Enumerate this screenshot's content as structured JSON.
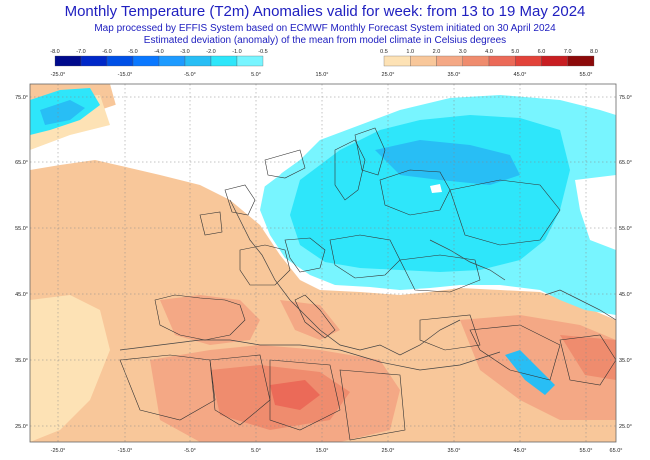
{
  "title": "Monthly Temperature (T2m) Anomalies valid for week: from 13 to 19 May 2024",
  "subtitle_1": "Map processed by EFFIS System based on ECMWF Monthly Forecast System initiated on 30 April 2024",
  "subtitle_2": "Estimated deviation (anomaly) of the mean from model climate in Celsius degrees",
  "legend_negative": {
    "labels": [
      "-8.0",
      "-7.0",
      "-6.0",
      "-5.0",
      "-4.0",
      "-3.0",
      "-2.0",
      "-1.0",
      "-0.5"
    ],
    "colors": [
      "#000a8c",
      "#0028c8",
      "#0050e6",
      "#0a78ff",
      "#1e9bff",
      "#28bef5",
      "#2ee6fa",
      "#78f5ff"
    ]
  },
  "legend_positive": {
    "labels": [
      "0.5",
      "1.0",
      "2.0",
      "3.0",
      "4.0",
      "5.0",
      "6.0",
      "7.0",
      "8.0"
    ],
    "colors": [
      "#fde2b5",
      "#f8c79a",
      "#f4a885",
      "#ef8c6e",
      "#eb6a58",
      "#e2433a",
      "#c81e22",
      "#8c0a0a"
    ]
  },
  "lon_labels_top": [
    "-25.0°",
    "-15.0°",
    "-5.0°",
    "5.0°",
    "15.0°",
    "25.0°",
    "35.0°",
    "45.0°",
    "55.0°"
  ],
  "lon_labels_bottom": [
    "-25.0°",
    "-15.0°",
    "-5.0°",
    "5.0°",
    "15.0°",
    "25.0°",
    "35.0°",
    "45.0°",
    "55.0°",
    "65.0°"
  ],
  "lat_labels": [
    "75.0°",
    "65.0°",
    "55.0°",
    "45.0°",
    "35.0°",
    "25.0°"
  ]
}
